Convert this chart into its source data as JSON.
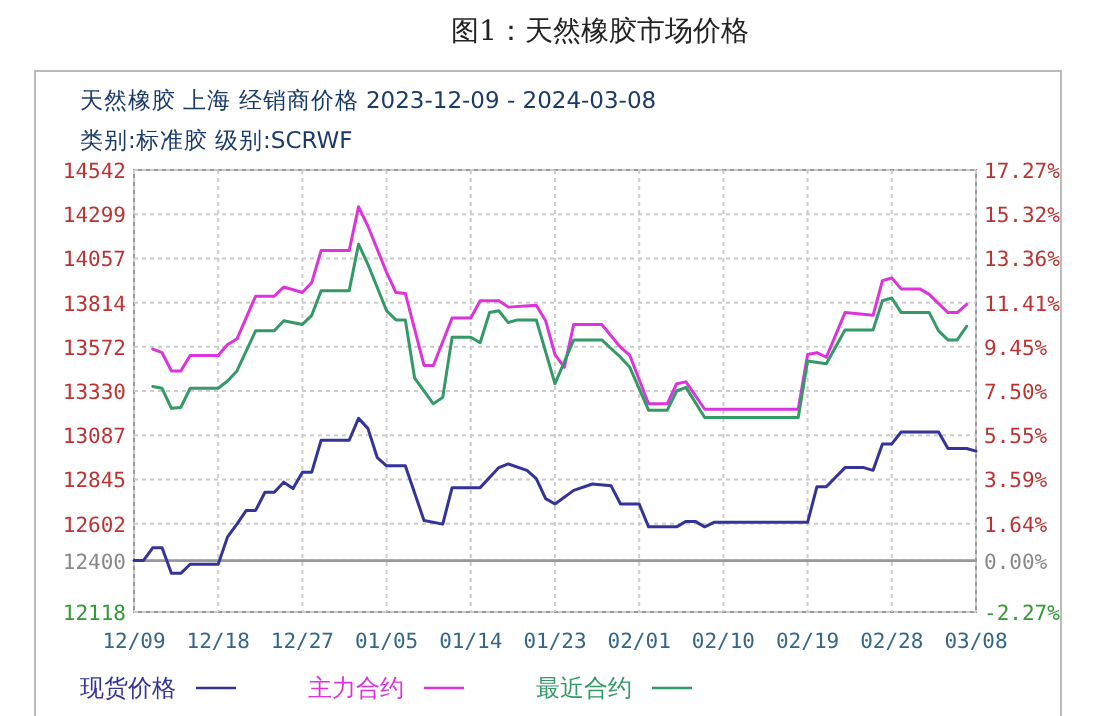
{
  "chart_data": {
    "type": "line",
    "title": "图1：天然橡胶市场价格",
    "subtitle": "天然橡胶 上海 经销商价格 2023-12-09 - 2024-03-08",
    "annotations": [
      "类别:标准胶 级别:SCRWF"
    ],
    "xlim": [
      "2023-12-09",
      "2024-03-08"
    ],
    "xticks": [
      {
        "value": "2023-12-09",
        "label": "12/09"
      },
      {
        "value": "2023-12-18",
        "label": "12/18"
      },
      {
        "value": "2023-12-27",
        "label": "12/27"
      },
      {
        "value": "2024-01-05",
        "label": "01/05"
      },
      {
        "value": "2024-01-14",
        "label": "01/14"
      },
      {
        "value": "2024-01-23",
        "label": "01/23"
      },
      {
        "value": "2024-02-01",
        "label": "02/01"
      },
      {
        "value": "2024-02-10",
        "label": "02/10"
      },
      {
        "value": "2024-02-19",
        "label": "02/19"
      },
      {
        "value": "2024-02-28",
        "label": "02/28"
      },
      {
        "value": "2024-03-08",
        "label": "03/08"
      }
    ],
    "ylim": [
      12118,
      14542
    ],
    "yticks": [
      12118,
      12400,
      12602,
      12845,
      13087,
      13330,
      13572,
      13814,
      14057,
      14299,
      14542
    ],
    "y2lim": [
      -2.27,
      17.27
    ],
    "y2ticks": [
      {
        "value": -2.27,
        "label": "-2.27%"
      },
      {
        "value": 0,
        "label": "0.00%"
      },
      {
        "value": 1.64,
        "label": "1.64%"
      },
      {
        "value": 3.59,
        "label": "3.59%"
      },
      {
        "value": 5.55,
        "label": "5.55%"
      },
      {
        "value": 7.5,
        "label": "7.50%"
      },
      {
        "value": 9.45,
        "label": "9.45%"
      },
      {
        "value": 11.41,
        "label": "11.41%"
      },
      {
        "value": 13.36,
        "label": "13.36%"
      },
      {
        "value": 15.32,
        "label": "15.32%"
      },
      {
        "value": 17.27,
        "label": "17.27%"
      }
    ],
    "ref_lines": [
      {
        "axis": "y2",
        "value": 0,
        "color": "#999999"
      }
    ],
    "grid": true,
    "legend": "bottom",
    "line_style": "solid",
    "marker": "none",
    "series": [
      {
        "name": "现货价格",
        "color": "#333399",
        "x": [
          "2023-12-09",
          "2023-12-10",
          "2023-12-11",
          "2023-12-12",
          "2023-12-13",
          "2023-12-14",
          "2023-12-15",
          "2023-12-18",
          "2023-12-19",
          "2023-12-20",
          "2023-12-21",
          "2023-12-22",
          "2023-12-23",
          "2023-12-24",
          "2023-12-25",
          "2023-12-26",
          "2023-12-27",
          "2023-12-28",
          "2023-12-29",
          "2024-01-01",
          "2024-01-02",
          "2024-01-03",
          "2024-01-04",
          "2024-01-05",
          "2024-01-07",
          "2024-01-09",
          "2024-01-11",
          "2024-01-12",
          "2024-01-15",
          "2024-01-17",
          "2024-01-18",
          "2024-01-20",
          "2024-01-21",
          "2024-01-22",
          "2024-01-23",
          "2024-01-25",
          "2024-01-27",
          "2024-01-29",
          "2024-01-30",
          "2024-02-01",
          "2024-02-02",
          "2024-02-05",
          "2024-02-06",
          "2024-02-07",
          "2024-02-08",
          "2024-02-09",
          "2024-02-19",
          "2024-02-20",
          "2024-02-21",
          "2024-02-23",
          "2024-02-25",
          "2024-02-26",
          "2024-02-27",
          "2024-02-28",
          "2024-02-29",
          "2024-03-04",
          "2024-03-05",
          "2024-03-07",
          "2024-03-08"
        ],
        "values": [
          12400,
          12400,
          12470,
          12470,
          12330,
          12330,
          12380,
          12380,
          12530,
          12600,
          12675,
          12675,
          12775,
          12775,
          12830,
          12795,
          12885,
          12885,
          13060,
          13060,
          13180,
          13125,
          12965,
          12920,
          12920,
          12620,
          12600,
          12800,
          12800,
          12910,
          12930,
          12895,
          12850,
          12740,
          12710,
          12785,
          12820,
          12810,
          12710,
          12710,
          12585,
          12585,
          12615,
          12615,
          12585,
          12610,
          12610,
          12805,
          12805,
          12910,
          12910,
          12895,
          13040,
          13040,
          13105,
          13105,
          13015,
          13015,
          13000
        ]
      },
      {
        "name": "主力合约",
        "color": "#dd33dd",
        "x": [
          "2023-12-11",
          "2023-12-12",
          "2023-12-13",
          "2023-12-14",
          "2023-12-15",
          "2023-12-18",
          "2023-12-19",
          "2023-12-20",
          "2023-12-22",
          "2023-12-24",
          "2023-12-25",
          "2023-12-27",
          "2023-12-28",
          "2023-12-29",
          "2024-01-01",
          "2024-01-02",
          "2024-01-03",
          "2024-01-05",
          "2024-01-06",
          "2024-01-07",
          "2024-01-09",
          "2024-01-10",
          "2024-01-12",
          "2024-01-14",
          "2024-01-15",
          "2024-01-17",
          "2024-01-18",
          "2024-01-21",
          "2024-01-22",
          "2024-01-23",
          "2024-01-24",
          "2024-01-25",
          "2024-01-28",
          "2024-01-30",
          "2024-01-31",
          "2024-02-02",
          "2024-02-04",
          "2024-02-05",
          "2024-02-06",
          "2024-02-08",
          "2024-02-18",
          "2024-02-19",
          "2024-02-20",
          "2024-02-21",
          "2024-02-23",
          "2024-02-26",
          "2024-02-27",
          "2024-02-28",
          "2024-02-29",
          "2024-03-02",
          "2024-03-03",
          "2024-03-05",
          "2024-03-06",
          "2024-03-07"
        ],
        "values": [
          13560,
          13540,
          13440,
          13440,
          13525,
          13525,
          13585,
          13615,
          13850,
          13850,
          13900,
          13870,
          13925,
          14100,
          14100,
          14340,
          14235,
          13980,
          13870,
          13865,
          13470,
          13470,
          13730,
          13730,
          13825,
          13825,
          13790,
          13800,
          13715,
          13530,
          13460,
          13695,
          13695,
          13570,
          13525,
          13260,
          13260,
          13370,
          13380,
          13230,
          13230,
          13530,
          13540,
          13515,
          13760,
          13745,
          13935,
          13950,
          13890,
          13890,
          13860,
          13760,
          13760,
          13805
        ]
      },
      {
        "name": "最近合约",
        "color": "#339966",
        "x": [
          "2023-12-11",
          "2023-12-12",
          "2023-12-13",
          "2023-12-14",
          "2023-12-15",
          "2023-12-18",
          "2023-12-19",
          "2023-12-20",
          "2023-12-22",
          "2023-12-24",
          "2023-12-25",
          "2023-12-27",
          "2023-12-28",
          "2023-12-29",
          "2024-01-01",
          "2024-01-02",
          "2024-01-03",
          "2024-01-05",
          "2024-01-06",
          "2024-01-07",
          "2024-01-08",
          "2024-01-10",
          "2024-01-11",
          "2024-01-12",
          "2024-01-14",
          "2024-01-15",
          "2024-01-16",
          "2024-01-17",
          "2024-01-18",
          "2024-01-19",
          "2024-01-21",
          "2024-01-23",
          "2024-01-25",
          "2024-01-28",
          "2024-01-30",
          "2024-01-31",
          "2024-02-02",
          "2024-02-04",
          "2024-02-05",
          "2024-02-06",
          "2024-02-08",
          "2024-02-18",
          "2024-02-19",
          "2024-02-21",
          "2024-02-23",
          "2024-02-26",
          "2024-02-27",
          "2024-02-28",
          "2024-02-29",
          "2024-03-03",
          "2024-03-04",
          "2024-03-05",
          "2024-03-06",
          "2024-03-07"
        ],
        "values": [
          13355,
          13345,
          13235,
          13240,
          13345,
          13345,
          13385,
          13440,
          13660,
          13660,
          13715,
          13695,
          13745,
          13880,
          13880,
          14135,
          14025,
          13770,
          13720,
          13720,
          13400,
          13260,
          13295,
          13625,
          13625,
          13595,
          13760,
          13770,
          13705,
          13720,
          13720,
          13370,
          13610,
          13610,
          13515,
          13460,
          13225,
          13225,
          13330,
          13350,
          13185,
          13185,
          13495,
          13480,
          13665,
          13665,
          13825,
          13840,
          13760,
          13760,
          13660,
          13610,
          13610,
          13685
        ]
      }
    ]
  }
}
